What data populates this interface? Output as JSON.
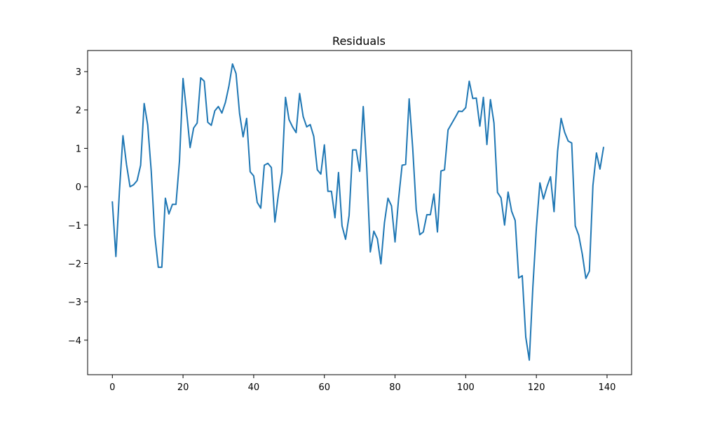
{
  "chart_data": {
    "type": "line",
    "title": "Residuals",
    "xlabel": "",
    "ylabel": "",
    "xlim": [
      -7,
      146.95
    ],
    "ylim": [
      -4.9,
      3.55
    ],
    "xticks": [
      0,
      20,
      40,
      60,
      80,
      100,
      120,
      140
    ],
    "yticks": [
      -4,
      -3,
      -2,
      -1,
      0,
      1,
      2,
      3
    ],
    "tick_labels_x": [
      "0",
      "20",
      "40",
      "60",
      "80",
      "100",
      "120",
      "140"
    ],
    "tick_labels_y": [
      "−4",
      "−3",
      "−2",
      "−1",
      "0",
      "1",
      "2",
      "3"
    ],
    "grid": false,
    "series": [
      {
        "color": "#1f77b4",
        "x": [
          0,
          1,
          2,
          3,
          4,
          5,
          6,
          7,
          8,
          9,
          10,
          11,
          12,
          13,
          14,
          15,
          16,
          17,
          18,
          19,
          20,
          21,
          22,
          23,
          24,
          25,
          26,
          27,
          28,
          29,
          30,
          31,
          32,
          33,
          34,
          35,
          36,
          37,
          38,
          39,
          40,
          41,
          42,
          43,
          44,
          45,
          46,
          47,
          48,
          49,
          50,
          51,
          52,
          53,
          54,
          55,
          56,
          57,
          58,
          59,
          60,
          61,
          62,
          63,
          64,
          65,
          66,
          67,
          68,
          69,
          70,
          71,
          72,
          73,
          74,
          75,
          76,
          77,
          78,
          79,
          80,
          81,
          82,
          83,
          84,
          85,
          86,
          87,
          88,
          89,
          90,
          91,
          92,
          93,
          94,
          95,
          96,
          97,
          98,
          99,
          100,
          101,
          102,
          103,
          104,
          105,
          106,
          107,
          108,
          109,
          110,
          111,
          112,
          113,
          114,
          115,
          116,
          117,
          118,
          119,
          120,
          121,
          122,
          123,
          124,
          125,
          126,
          127,
          128,
          129,
          130,
          131,
          132,
          133,
          134,
          135,
          136,
          137,
          138,
          139
        ],
        "values": [
          -0.4,
          -1.82,
          -0.12,
          1.33,
          0.58,
          0.0,
          0.05,
          0.16,
          0.56,
          2.17,
          1.61,
          0.41,
          -1.27,
          -2.1,
          -2.1,
          -0.3,
          -0.71,
          -0.46,
          -0.46,
          0.68,
          2.82,
          1.96,
          1.02,
          1.53,
          1.66,
          2.84,
          2.75,
          1.68,
          1.6,
          1.98,
          2.09,
          1.92,
          2.2,
          2.63,
          3.2,
          2.95,
          1.91,
          1.3,
          1.78,
          0.39,
          0.28,
          -0.41,
          -0.56,
          0.56,
          0.61,
          0.5,
          -0.92,
          -0.19,
          0.37,
          2.33,
          1.75,
          1.56,
          1.41,
          2.43,
          1.83,
          1.56,
          1.62,
          1.31,
          0.44,
          0.33,
          1.09,
          -0.12,
          -0.12,
          -0.81,
          0.37,
          -1.02,
          -1.37,
          -0.75,
          0.96,
          0.96,
          0.4,
          2.09,
          0.48,
          -1.7,
          -1.16,
          -1.36,
          -2.01,
          -0.94,
          -0.3,
          -0.5,
          -1.44,
          -0.32,
          0.56,
          0.58,
          2.29,
          1.01,
          -0.59,
          -1.25,
          -1.18,
          -0.73,
          -0.73,
          -0.19,
          -1.18,
          0.41,
          0.44,
          1.48,
          1.64,
          1.8,
          1.97,
          1.96,
          2.06,
          2.75,
          2.3,
          2.31,
          1.58,
          2.33,
          1.1,
          2.27,
          1.66,
          -0.15,
          -0.29,
          -1.0,
          -0.14,
          -0.64,
          -0.88,
          -2.38,
          -2.32,
          -3.92,
          -4.52,
          -2.62,
          -1.07,
          0.1,
          -0.32,
          0.0,
          0.26,
          -0.65,
          0.92,
          1.78,
          1.42,
          1.19,
          1.14,
          -1.02,
          -1.27,
          -1.76,
          -2.39,
          -2.2,
          0.03,
          0.88,
          0.46,
          1.02
        ]
      }
    ]
  }
}
